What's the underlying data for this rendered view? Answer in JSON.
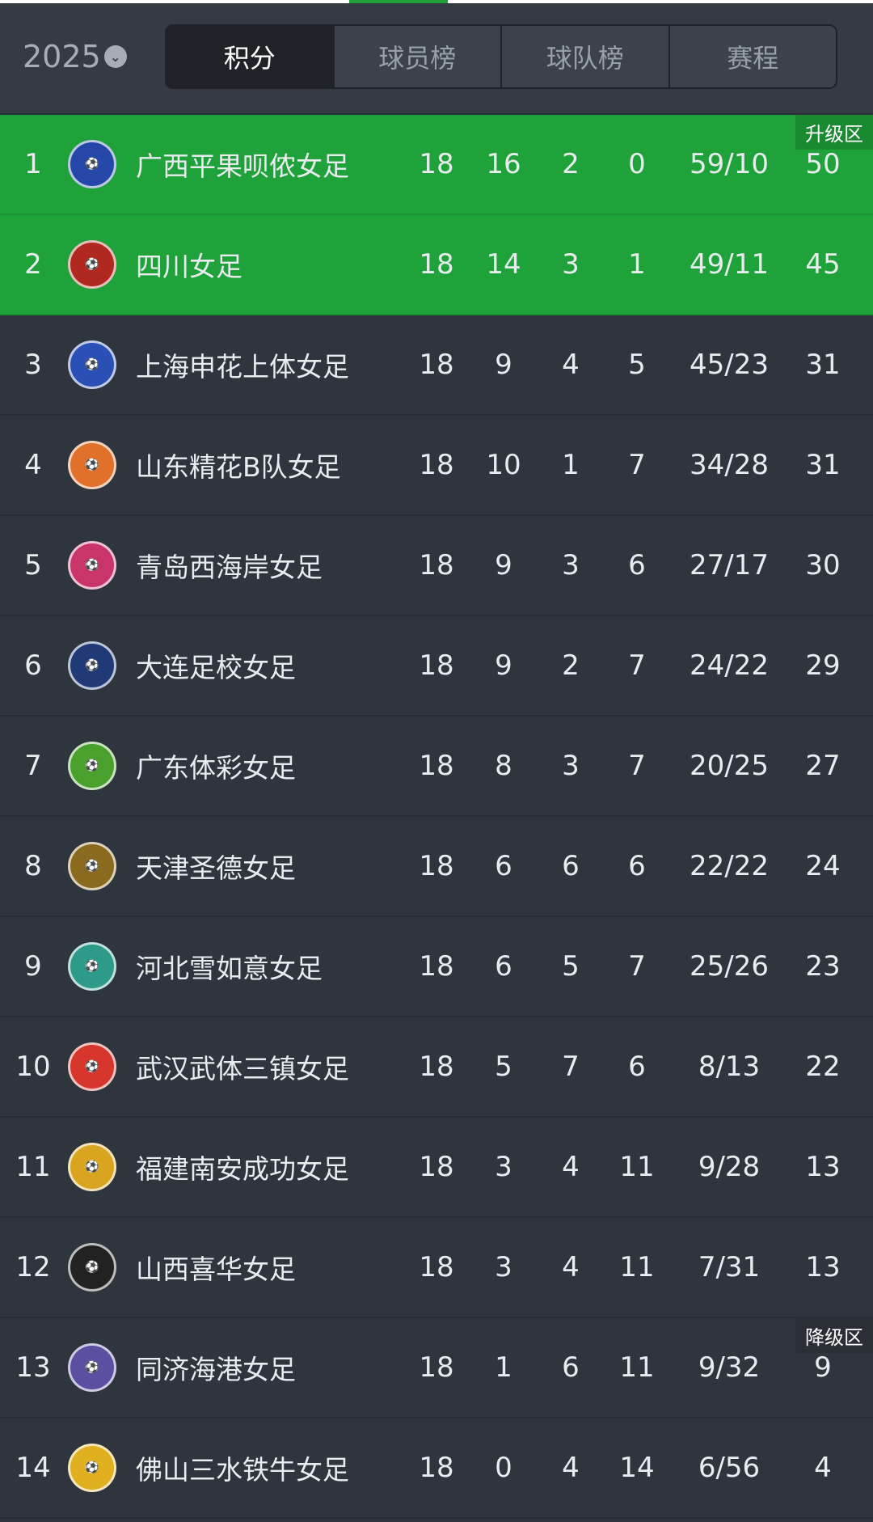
{
  "season": "2025",
  "tabs": [
    "积分",
    "球员榜",
    "球队榜",
    "赛程"
  ],
  "zones": {
    "promotion": "升级区",
    "relegation": "降级区"
  },
  "colors": {
    "promotion": "#1fa23a",
    "background": "#2f353d",
    "header": "#353b43"
  },
  "rows": [
    {
      "rank": "1",
      "team": "广西平果呗侬女足",
      "played": "18",
      "won": "16",
      "drawn": "2",
      "lost": "0",
      "goals": "59/10",
      "points": "50",
      "logo_color": "#2447a8"
    },
    {
      "rank": "2",
      "team": "四川女足",
      "played": "18",
      "won": "14",
      "drawn": "3",
      "lost": "1",
      "goals": "49/11",
      "points": "45",
      "logo_color": "#b0281f"
    },
    {
      "rank": "3",
      "team": "上海申花上体女足",
      "played": "18",
      "won": "9",
      "drawn": "4",
      "lost": "5",
      "goals": "45/23",
      "points": "31",
      "logo_color": "#2a4fb5"
    },
    {
      "rank": "4",
      "team": "山东精花B队女足",
      "played": "18",
      "won": "10",
      "drawn": "1",
      "lost": "7",
      "goals": "34/28",
      "points": "31",
      "logo_color": "#e0702a"
    },
    {
      "rank": "5",
      "team": "青岛西海岸女足",
      "played": "18",
      "won": "9",
      "drawn": "3",
      "lost": "6",
      "goals": "27/17",
      "points": "30",
      "logo_color": "#c9356b"
    },
    {
      "rank": "6",
      "team": "大连足校女足",
      "played": "18",
      "won": "9",
      "drawn": "2",
      "lost": "7",
      "goals": "24/22",
      "points": "29",
      "logo_color": "#203a78"
    },
    {
      "rank": "7",
      "team": "广东体彩女足",
      "played": "18",
      "won": "8",
      "drawn": "3",
      "lost": "7",
      "goals": "20/25",
      "points": "27",
      "logo_color": "#4aa02c"
    },
    {
      "rank": "8",
      "team": "天津圣德女足",
      "played": "18",
      "won": "6",
      "drawn": "6",
      "lost": "6",
      "goals": "22/22",
      "points": "24",
      "logo_color": "#8a6a1e"
    },
    {
      "rank": "9",
      "team": "河北雪如意女足",
      "played": "18",
      "won": "6",
      "drawn": "5",
      "lost": "7",
      "goals": "25/26",
      "points": "23",
      "logo_color": "#2e9a8a"
    },
    {
      "rank": "10",
      "team": "武汉武体三镇女足",
      "played": "18",
      "won": "5",
      "drawn": "7",
      "lost": "6",
      "goals": "8/13",
      "points": "22",
      "logo_color": "#d6362c"
    },
    {
      "rank": "11",
      "team": "福建南安成功女足",
      "played": "18",
      "won": "3",
      "drawn": "4",
      "lost": "11",
      "goals": "9/28",
      "points": "13",
      "logo_color": "#d9a520"
    },
    {
      "rank": "12",
      "team": "山西喜华女足",
      "played": "18",
      "won": "3",
      "drawn": "4",
      "lost": "11",
      "goals": "7/31",
      "points": "13",
      "logo_color": "#222222"
    },
    {
      "rank": "13",
      "team": "同济海港女足",
      "played": "18",
      "won": "1",
      "drawn": "6",
      "lost": "11",
      "goals": "9/32",
      "points": "9",
      "logo_color": "#5a4fa0"
    },
    {
      "rank": "14",
      "team": "佛山三水铁牛女足",
      "played": "18",
      "won": "0",
      "drawn": "4",
      "lost": "14",
      "goals": "6/56",
      "points": "4",
      "logo_color": "#e0b020"
    }
  ]
}
